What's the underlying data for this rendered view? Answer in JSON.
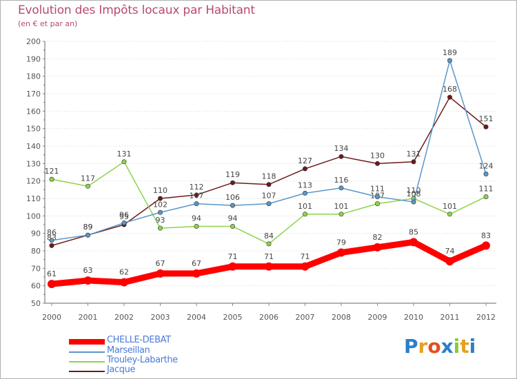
{
  "title": "Evolution des Impôts locaux par Habitant",
  "subtitle": "(en € et par an)",
  "chart_data": {
    "type": "line",
    "title": "Evolution des Impôts locaux par Habitant",
    "subtitle": "(en € et par an)",
    "xlabel": "",
    "ylabel": "",
    "ylim": [
      50,
      200
    ],
    "yticks": [
      50,
      60,
      70,
      80,
      90,
      100,
      110,
      120,
      130,
      140,
      150,
      160,
      170,
      180,
      190,
      200
    ],
    "grid": "horizontal dotted",
    "x": [
      "2000",
      "2001",
      "2002",
      "2003",
      "2004",
      "2005",
      "2006",
      "2007",
      "2008",
      "2009",
      "2010",
      "2011",
      "2012"
    ],
    "series": [
      {
        "name": "CHELLE-DEBAT",
        "color": "#ff0000",
        "values": [
          61,
          63,
          62,
          67,
          67,
          71,
          71,
          71,
          79,
          82,
          85,
          74,
          83
        ]
      },
      {
        "name": "Marseillan",
        "color": "#5a96c8",
        "values": [
          86,
          89,
          96,
          102,
          107,
          106,
          107,
          113,
          116,
          111,
          108,
          189,
          124
        ]
      },
      {
        "name": "Trouley-Labarthe",
        "color": "#8ed34a",
        "values": [
          121,
          117,
          131,
          93,
          94,
          94,
          84,
          101,
          101,
          107,
          110,
          101,
          111
        ]
      },
      {
        "name": "Jacque",
        "color": "#6b1a1a",
        "values": [
          83,
          89,
          95,
          110,
          112,
          119,
          118,
          127,
          134,
          130,
          131,
          168,
          151
        ]
      }
    ],
    "legend_position": "bottom-left"
  },
  "logo": {
    "letters": [
      "P",
      "r",
      "o",
      "x",
      "i",
      "t",
      "i"
    ],
    "colors": [
      "#2a7fc8",
      "#e8a020",
      "#e05020",
      "#2a7fc8",
      "#8cc83c",
      "#e8a020",
      "#2a7fc8"
    ]
  }
}
